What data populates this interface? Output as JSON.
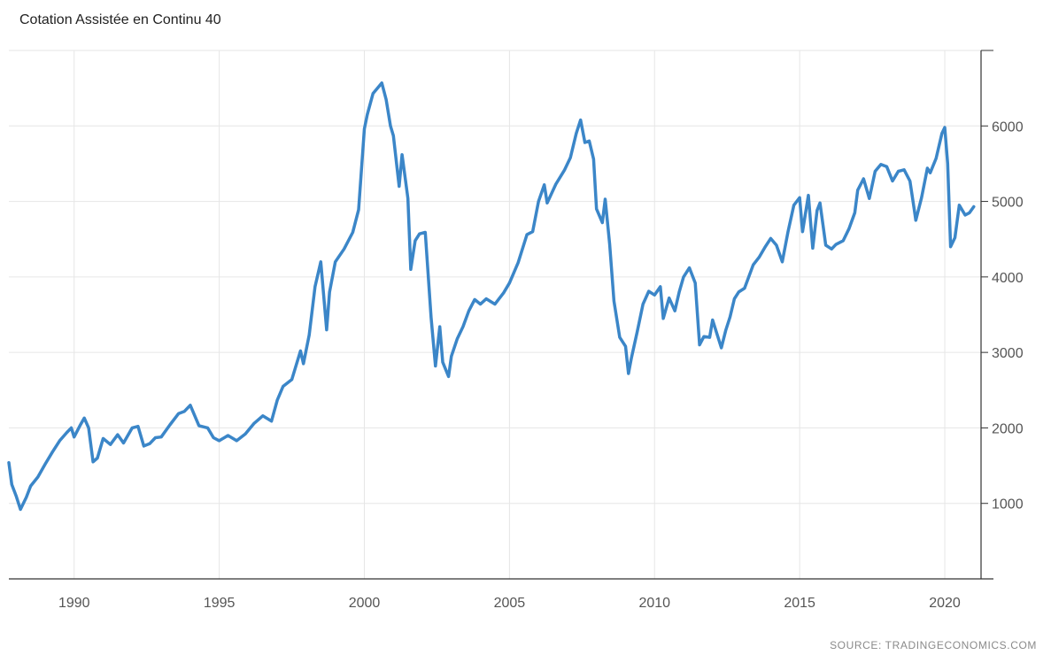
{
  "page": {
    "title": "Cotation Assistée en Continu 40",
    "source": "SOURCE: TRADINGECONOMICS.COM"
  },
  "colors": {
    "line": "#3b86c8",
    "grid": "#e6e6e6",
    "axis": "#333333",
    "tick_text": "#555555"
  },
  "chart_data": {
    "type": "line",
    "title": "Cotation Assistée en Continu 40",
    "xlabel": "",
    "ylabel": "",
    "xlim": [
      1987.75,
      2021.25
    ],
    "ylim": [
      0,
      7000
    ],
    "x_ticks": [
      1990,
      1995,
      2000,
      2005,
      2010,
      2015,
      2020
    ],
    "y_ticks": [
      1000,
      2000,
      3000,
      4000,
      5000,
      6000
    ],
    "grid": true,
    "y_axis_side": "right",
    "legend": "none",
    "series": [
      {
        "x": [
          1987.75,
          1987.85,
          1988.0,
          1988.15,
          1988.35,
          1988.5,
          1988.75,
          1989.0,
          1989.25,
          1989.5,
          1989.75,
          1989.9,
          1990.0,
          1990.2,
          1990.35,
          1990.5,
          1990.65,
          1990.8,
          1991.0,
          1991.25,
          1991.5,
          1991.7,
          1992.0,
          1992.2,
          1992.4,
          1992.6,
          1992.8,
          1993.0,
          1993.3,
          1993.6,
          1993.8,
          1994.0,
          1994.3,
          1994.6,
          1994.8,
          1995.0,
          1995.3,
          1995.6,
          1995.9,
          1996.2,
          1996.5,
          1996.8,
          1997.0,
          1997.2,
          1997.5,
          1997.8,
          1997.9,
          1998.1,
          1998.3,
          1998.5,
          1998.7,
          1998.8,
          1999.0,
          1999.3,
          1999.6,
          1999.8,
          2000.0,
          2000.1,
          2000.3,
          2000.6,
          2000.75,
          2000.9,
          2001.0,
          2001.2,
          2001.3,
          2001.5,
          2001.6,
          2001.75,
          2001.9,
          2002.1,
          2002.3,
          2002.45,
          2002.6,
          2002.7,
          2002.9,
          2003.0,
          2003.2,
          2003.4,
          2003.6,
          2003.8,
          2004.0,
          2004.2,
          2004.5,
          2004.8,
          2005.0,
          2005.3,
          2005.6,
          2005.8,
          2006.0,
          2006.2,
          2006.3,
          2006.6,
          2006.9,
          2007.1,
          2007.3,
          2007.45,
          2007.6,
          2007.75,
          2007.9,
          2008.0,
          2008.2,
          2008.3,
          2008.45,
          2008.6,
          2008.8,
          2009.0,
          2009.1,
          2009.2,
          2009.4,
          2009.6,
          2009.8,
          2010.0,
          2010.2,
          2010.3,
          2010.5,
          2010.7,
          2010.85,
          2011.0,
          2011.2,
          2011.4,
          2011.55,
          2011.7,
          2011.9,
          2012.0,
          2012.3,
          2012.45,
          2012.6,
          2012.75,
          2012.9,
          2013.1,
          2013.4,
          2013.6,
          2013.8,
          2014.0,
          2014.2,
          2014.4,
          2014.6,
          2014.8,
          2015.0,
          2015.1,
          2015.3,
          2015.45,
          2015.6,
          2015.7,
          2015.9,
          2016.1,
          2016.25,
          2016.5,
          2016.7,
          2016.9,
          2017.0,
          2017.2,
          2017.4,
          2017.6,
          2017.8,
          2018.0,
          2018.2,
          2018.4,
          2018.6,
          2018.8,
          2018.95,
          2019.0,
          2019.2,
          2019.4,
          2019.5,
          2019.7,
          2019.9,
          2020.0,
          2020.1,
          2020.2,
          2020.35,
          2020.5,
          2020.7,
          2020.85,
          2021.0
        ],
        "y": [
          1540,
          1250,
          1100,
          920,
          1080,
          1230,
          1350,
          1520,
          1680,
          1830,
          1940,
          2000,
          1880,
          2030,
          2130,
          2000,
          1550,
          1600,
          1860,
          1780,
          1910,
          1800,
          2000,
          2020,
          1760,
          1790,
          1870,
          1880,
          2040,
          2190,
          2220,
          2300,
          2030,
          2000,
          1870,
          1830,
          1900,
          1830,
          1920,
          2060,
          2160,
          2090,
          2370,
          2550,
          2640,
          3020,
          2850,
          3230,
          3870,
          4200,
          3300,
          3800,
          4200,
          4370,
          4590,
          4890,
          5960,
          6150,
          6430,
          6570,
          6350,
          6000,
          5870,
          5200,
          5620,
          5040,
          4100,
          4480,
          4570,
          4590,
          3460,
          2820,
          3340,
          2870,
          2680,
          2950,
          3180,
          3340,
          3550,
          3700,
          3640,
          3710,
          3640,
          3790,
          3920,
          4190,
          4560,
          4600,
          5000,
          5220,
          4980,
          5230,
          5420,
          5580,
          5900,
          6080,
          5780,
          5800,
          5560,
          4900,
          4720,
          5030,
          4440,
          3680,
          3200,
          3080,
          2720,
          2920,
          3270,
          3640,
          3810,
          3760,
          3870,
          3450,
          3720,
          3550,
          3800,
          4000,
          4120,
          3920,
          3100,
          3210,
          3200,
          3430,
          3060,
          3290,
          3470,
          3710,
          3800,
          3850,
          4160,
          4260,
          4390,
          4510,
          4420,
          4200,
          4600,
          4950,
          5050,
          4600,
          5080,
          4380,
          4880,
          4980,
          4420,
          4370,
          4430,
          4480,
          4640,
          4850,
          5150,
          5300,
          5040,
          5400,
          5490,
          5460,
          5270,
          5400,
          5420,
          5270,
          4890,
          4750,
          5050,
          5440,
          5380,
          5570,
          5900,
          5980,
          5500,
          4400,
          4520,
          4950,
          4820,
          4850,
          4930
        ]
      }
    ]
  }
}
